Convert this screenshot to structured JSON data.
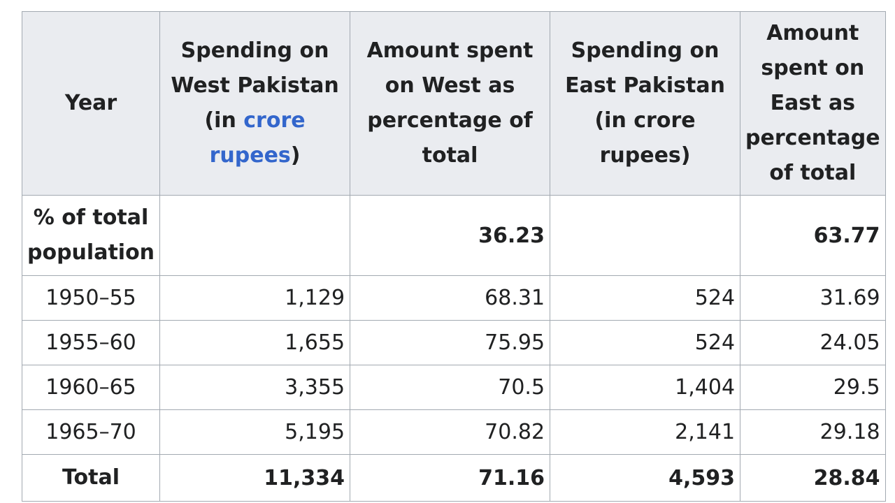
{
  "table": {
    "headers": {
      "year": "Year",
      "west_spending": {
        "pre": "Spending on West Pakistan (in ",
        "link": "crore rupees",
        "post": ")"
      },
      "west_pct": "Amount spent on West as percentage of total",
      "east_spending": "Spending on East Pakistan (in crore rupees)",
      "east_pct": "Amount spent on East as percentage of total"
    },
    "population_row": {
      "label": "% of total population",
      "west_spending": "",
      "west_pct": "36.23",
      "east_spending": "",
      "east_pct": "63.77"
    },
    "rows": [
      {
        "year": "1950–55",
        "west_spending": "1,129",
        "west_pct": "68.31",
        "east_spending": "524",
        "east_pct": "31.69"
      },
      {
        "year": "1955–60",
        "west_spending": "1,655",
        "west_pct": "75.95",
        "east_spending": "524",
        "east_pct": "24.05"
      },
      {
        "year": "1960–65",
        "west_spending": "3,355",
        "west_pct": "70.5",
        "east_spending": "1,404",
        "east_pct": "29.5"
      },
      {
        "year": "1965–70",
        "west_spending": "5,195",
        "west_pct": "70.82",
        "east_spending": "2,141",
        "east_pct": "29.18"
      }
    ],
    "total_row": {
      "label": "Total",
      "west_spending": "11,334",
      "west_pct": "71.16",
      "east_spending": "4,593",
      "east_pct": "28.84"
    }
  },
  "colors": {
    "header_bg": "#eaecf0",
    "border": "#a2a9b1",
    "link": "#3366cc",
    "text": "#202122"
  }
}
